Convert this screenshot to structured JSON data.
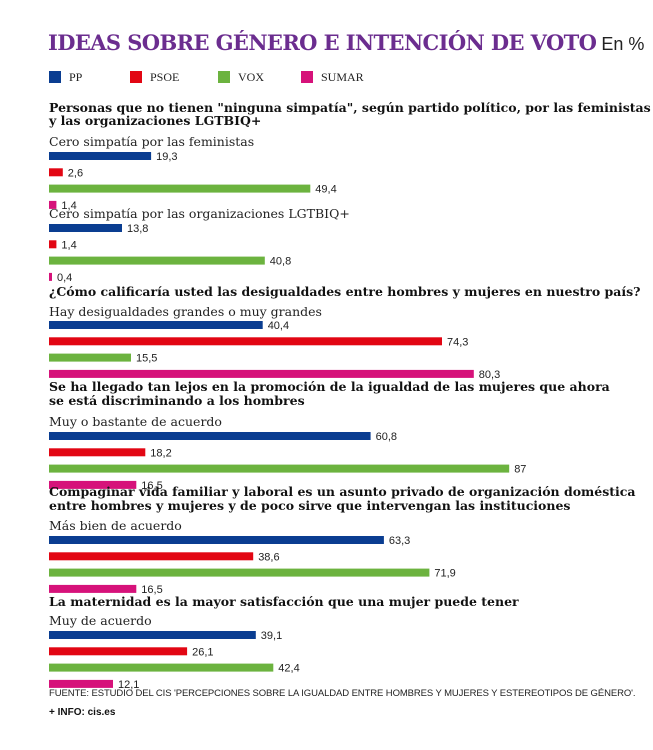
{
  "header": {
    "title": "IDEAS SOBRE GÉNERO E INTENCIÓN DE VOTO",
    "unit": "En %"
  },
  "colors": {
    "PP": "#0a3d91",
    "PSOE": "#e20613",
    "VOX": "#6cb33f",
    "SUMAR": "#d6127a",
    "title": "#6b2d8f"
  },
  "legend": [
    "PP",
    "PSOE",
    "VOX",
    "SUMAR"
  ],
  "footer": {
    "source": "FUENTE: ESTUDIO DEL CIS 'PERCEPCIONES SOBRE LA IGUALDAD ENTRE HOMBRES Y MUJERES Y ESTEREOTIPOS DE GÉNERO'.",
    "info": "+ INFO: cis.es"
  },
  "chart_data": {
    "type": "bar",
    "orientation": "horizontal",
    "unit": "%",
    "series_names": [
      "PP",
      "PSOE",
      "VOX",
      "SUMAR"
    ],
    "xlim": [
      0,
      87
    ],
    "sections": [
      {
        "question": [
          "Personas que no tienen \"ninguna simpatía\", según partido político, por las feministas",
          "y las organizaciones LGTBIQ+"
        ],
        "groups": [
          {
            "label": "Cero simpatía por las feministas",
            "values": [
              "19,3",
              "2,6",
              "49,4",
              "1,4"
            ]
          },
          {
            "label": "Cero simpatía por las organizaciones LGTBIQ+",
            "values": [
              "13,8",
              "1,4",
              "40,8",
              "0,4"
            ]
          }
        ]
      },
      {
        "question": [
          "¿Cómo calificaría usted las desigualdades entre hombres y mujeres en nuestro país?"
        ],
        "groups": [
          {
            "label": "Hay desigualdades grandes o muy grandes",
            "values": [
              "40,4",
              "74,3",
              "15,5",
              "80,3"
            ]
          }
        ]
      },
      {
        "question": [
          "Se ha llegado tan lejos en la promoción de la igualdad de las mujeres que ahora",
          "se está discriminando a los hombres"
        ],
        "groups": [
          {
            "label": "Muy o bastante de acuerdo",
            "values": [
              "60,8",
              "18,2",
              "87",
              "16,5"
            ]
          }
        ]
      },
      {
        "question": [
          "Compaginar vida familiar y laboral es un asunto privado de organización doméstica",
          "entre hombres y mujeres y de poco sirve que intervengan las instituciones"
        ],
        "groups": [
          {
            "label": "Más bien de acuerdo",
            "values": [
              "63,3",
              "38,6",
              "71,9",
              "16,5"
            ]
          }
        ]
      },
      {
        "question": [
          "La maternidad es la mayor satisfacción que una mujer puede tener"
        ],
        "groups": [
          {
            "label": "Muy de acuerdo",
            "values": [
              "39,1",
              "26,1",
              "42,4",
              "12,1"
            ]
          }
        ]
      }
    ]
  }
}
